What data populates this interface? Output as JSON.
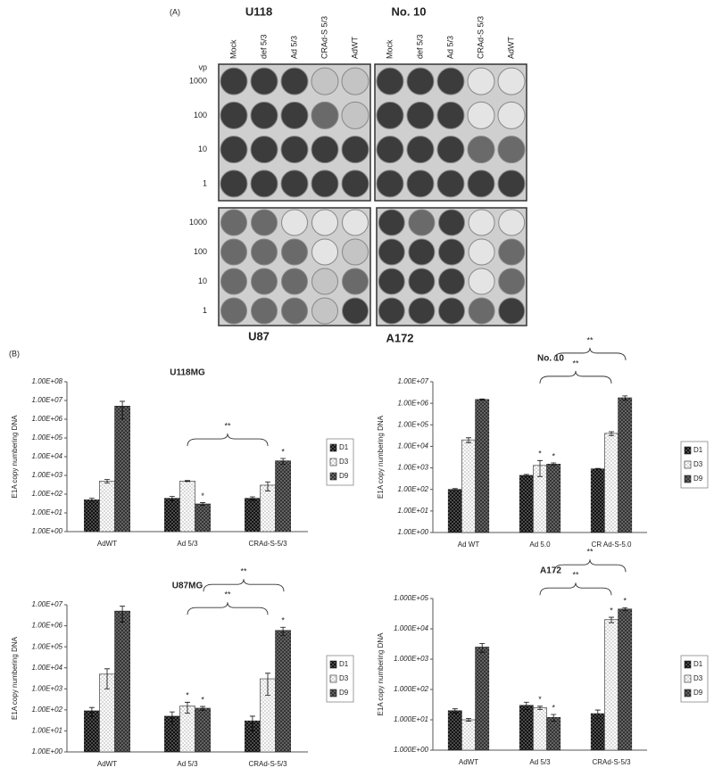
{
  "panel_a": {
    "label": "(A)",
    "plates": [
      {
        "title": "U118"
      },
      {
        "title": "No. 10"
      },
      {
        "title": "U87"
      },
      {
        "title": "A172"
      }
    ],
    "columns": [
      "Mock",
      "def 5/3",
      "Ad 5/3",
      "CRAd-S 5/3",
      "AdWT"
    ],
    "row_header": "vp",
    "rows": [
      "1000",
      "100",
      "10",
      "1"
    ]
  },
  "panel_b_label": "(B)",
  "chart_data": [
    {
      "type": "bar",
      "title": "U118MG",
      "y_label": "E1A copy numbering DNA",
      "log_scale": true,
      "categories": [
        "AdWT",
        "Ad 5/3",
        "CRAd-S-5/3"
      ],
      "ylim": [
        1,
        100000000
      ],
      "yticks": [
        {
          "value": 1,
          "label": "1.00E+00"
        },
        {
          "value": 10,
          "label": "1.00E+01"
        },
        {
          "value": 100,
          "label": "1.00E+02"
        },
        {
          "value": 1000,
          "label": "1.00E+03"
        },
        {
          "value": 10000,
          "label": "1.00E+04"
        },
        {
          "value": 100000,
          "label": "1.00E+05"
        },
        {
          "value": 1000000,
          "label": "1.00E+06"
        },
        {
          "value": 10000000,
          "label": "1.00E+07"
        },
        {
          "value": 100000000,
          "label": "1.00E+08"
        }
      ],
      "series": [
        {
          "name": "D1",
          "color": "#111111",
          "values": [
            50,
            60,
            60
          ],
          "errors": [
            10,
            15,
            12
          ],
          "stars": [
            null,
            null,
            null
          ]
        },
        {
          "name": "D3",
          "color": "#ffffff",
          "values": [
            500,
            500,
            300
          ],
          "errors": [
            100,
            30,
            150
          ],
          "stars": [
            null,
            null,
            null
          ]
        },
        {
          "name": "D9",
          "color": "#333333",
          "values": [
            5000000,
            30,
            6000
          ],
          "errors": [
            4000000,
            5,
            2000
          ],
          "stars": [
            null,
            "*",
            "*"
          ]
        }
      ],
      "brackets": [
        {
          "label": "**",
          "from": "Ad 5/3",
          "to": "CRAd-S-5/3"
        }
      ]
    },
    {
      "type": "bar",
      "title": "No. 10",
      "y_label": "E1A copy numbering DNA",
      "log_scale": true,
      "categories": [
        "Ad WT",
        "Ad 5.0",
        "CR Ad-S-5.0"
      ],
      "ylim": [
        1,
        10000000
      ],
      "yticks": [
        {
          "value": 1,
          "label": "1.00E+00"
        },
        {
          "value": 10,
          "label": "1.00E+01"
        },
        {
          "value": 100,
          "label": "1.00E+02"
        },
        {
          "value": 1000,
          "label": "1.00E+03"
        },
        {
          "value": 10000,
          "label": "1.00E+04"
        },
        {
          "value": 100000,
          "label": "1.00E+05"
        },
        {
          "value": 1000000,
          "label": "1.00E+06"
        },
        {
          "value": 10000000,
          "label": "1.00E+07"
        }
      ],
      "series": [
        {
          "name": "D1",
          "color": "#111111",
          "values": [
            100,
            450,
            900
          ],
          "errors": [
            10,
            50,
            50
          ],
          "stars": [
            null,
            null,
            null
          ]
        },
        {
          "name": "D3",
          "color": "#ffffff",
          "values": [
            20000,
            1300,
            40000
          ],
          "errors": [
            5000,
            900,
            8000
          ],
          "stars": [
            null,
            "*",
            null
          ]
        },
        {
          "name": "D9",
          "color": "#333333",
          "values": [
            1500000,
            1500,
            1800000
          ],
          "errors": [
            100000,
            200,
            400000
          ],
          "stars": [
            null,
            "*",
            null
          ]
        }
      ],
      "brackets": [
        {
          "label": "**",
          "from": "Ad 5.0",
          "to": "CR Ad-S-5.0"
        },
        {
          "label": "**",
          "from": "Ad 5.0",
          "to": "CR Ad-S-5.0"
        }
      ]
    },
    {
      "type": "bar",
      "title": "U87MG",
      "y_label": "E1A copy numbering DNA",
      "log_scale": true,
      "categories": [
        "AdWT",
        "Ad 5/3",
        "CRAd-S-5/3"
      ],
      "ylim": [
        1,
        10000000
      ],
      "yticks": [
        {
          "value": 1,
          "label": "1.00E+00"
        },
        {
          "value": 10,
          "label": "1.00E+01"
        },
        {
          "value": 100,
          "label": "1.00E+02"
        },
        {
          "value": 1000,
          "label": "1.00E+03"
        },
        {
          "value": 10000,
          "label": "1.00E+04"
        },
        {
          "value": 100000,
          "label": "1.00E+05"
        },
        {
          "value": 1000000,
          "label": "1.00E+06"
        },
        {
          "value": 10000000,
          "label": "1.00E+07"
        }
      ],
      "series": [
        {
          "name": "D1",
          "color": "#111111",
          "values": [
            90,
            50,
            30
          ],
          "errors": [
            40,
            30,
            20
          ],
          "stars": [
            null,
            null,
            null
          ]
        },
        {
          "name": "D3",
          "color": "#ffffff",
          "values": [
            5000,
            150,
            3000
          ],
          "errors": [
            4000,
            80,
            2500
          ],
          "stars": [
            null,
            "*",
            null
          ]
        },
        {
          "name": "D9",
          "color": "#333333",
          "values": [
            5000000,
            120,
            600000
          ],
          "errors": [
            3500000,
            25,
            250000
          ],
          "stars": [
            null,
            "*",
            "*"
          ]
        }
      ],
      "brackets": [
        {
          "label": "**",
          "from": "Ad 5/3",
          "to": "CRAd-S-5/3"
        },
        {
          "label": "**",
          "from": "Ad 5/3",
          "to": "CRAd-S-5/3"
        }
      ]
    },
    {
      "type": "bar",
      "title": "A172",
      "y_label": "E1A copy numbering DNA",
      "log_scale": true,
      "categories": [
        "AdWT",
        "Ad 5/3",
        "CRAd-S-5/3"
      ],
      "ylim": [
        1,
        100000
      ],
      "yticks": [
        {
          "value": 1,
          "label": "1.000E+00"
        },
        {
          "value": 10,
          "label": "1.000E+01"
        },
        {
          "value": 100,
          "label": "1.000E+02"
        },
        {
          "value": 1000,
          "label": "1.000E+03"
        },
        {
          "value": 10000,
          "label": "1.000E+04"
        },
        {
          "value": 100000,
          "label": "1.000E+05"
        }
      ],
      "series": [
        {
          "name": "D1",
          "color": "#111111",
          "values": [
            20,
            30,
            16
          ],
          "errors": [
            3,
            8,
            5
          ],
          "stars": [
            null,
            null,
            null
          ]
        },
        {
          "name": "D3",
          "color": "#ffffff",
          "values": [
            10,
            25,
            20000
          ],
          "errors": [
            1,
            3,
            4000
          ],
          "stars": [
            null,
            "*",
            "*"
          ]
        },
        {
          "name": "D9",
          "color": "#333333",
          "values": [
            2500,
            12,
            45000
          ],
          "errors": [
            800,
            3,
            5000
          ],
          "stars": [
            null,
            "*",
            "*"
          ]
        }
      ],
      "brackets": [
        {
          "label": "**",
          "from": "Ad 5/3",
          "to": "CRAd-S-5/3"
        },
        {
          "label": "**",
          "from": "Ad 5/3",
          "to": "CRAd-S-5/3"
        }
      ]
    }
  ]
}
